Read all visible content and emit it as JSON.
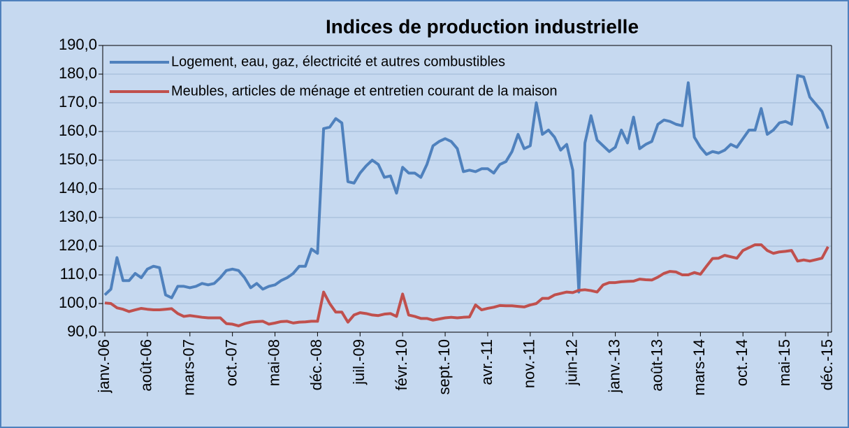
{
  "chart_data": {
    "type": "line",
    "title": "Indices de production industrielle",
    "categories": [
      "janv.-06",
      null,
      null,
      null,
      null,
      null,
      null,
      "août-06",
      null,
      null,
      null,
      null,
      null,
      null,
      "mars-07",
      null,
      null,
      null,
      null,
      null,
      null,
      "oct.-07",
      null,
      null,
      null,
      null,
      null,
      null,
      "mai-08",
      null,
      null,
      null,
      null,
      null,
      null,
      "déc.-08",
      null,
      null,
      null,
      null,
      null,
      null,
      "juil.-09",
      null,
      null,
      null,
      null,
      null,
      null,
      "févr.-10",
      null,
      null,
      null,
      null,
      null,
      null,
      "sept.-10",
      null,
      null,
      null,
      null,
      null,
      null,
      "avr.-11",
      null,
      null,
      null,
      null,
      null,
      null,
      "nov.-11",
      null,
      null,
      null,
      null,
      null,
      null,
      "juin-12",
      null,
      null,
      null,
      null,
      null,
      null,
      "janv.-13",
      null,
      null,
      null,
      null,
      null,
      null,
      "août-13",
      null,
      null,
      null,
      null,
      null,
      null,
      "mars-14",
      null,
      null,
      null,
      null,
      null,
      null,
      "oct.-14",
      null,
      null,
      null,
      null,
      null,
      null,
      "mai-15",
      null,
      null,
      null,
      null,
      null,
      null,
      "déc.-15"
    ],
    "series": [
      {
        "name": "Logement, eau, gaz, électricité et autres combustibles",
        "color": "#4f81bd",
        "values": [
          103,
          105,
          116,
          108,
          108,
          110.5,
          109,
          112,
          113,
          112.5,
          103,
          102,
          106,
          106,
          105.5,
          106,
          107,
          106.5,
          107,
          109,
          111.5,
          112,
          111.5,
          109,
          105.5,
          107,
          105,
          106,
          106.5,
          108,
          109,
          110.5,
          113,
          113,
          119,
          117.5,
          161,
          161.5,
          164.5,
          163,
          142.5,
          142,
          145.5,
          148,
          150,
          148.5,
          144,
          144.5,
          138.5,
          147.5,
          145.5,
          145.5,
          144,
          148.5,
          155,
          156.5,
          157.5,
          156.5,
          154,
          146,
          146.5,
          146,
          147,
          147,
          145.5,
          148.5,
          149.5,
          153,
          159,
          154,
          155,
          170,
          159,
          160.5,
          158,
          153.5,
          155.5,
          146.5,
          104,
          156,
          165.5,
          157,
          155,
          153,
          154.5,
          160.5,
          156,
          165,
          154,
          155.5,
          156.5,
          162.5,
          164,
          163.5,
          162.5,
          162,
          177,
          158,
          154.5,
          152,
          153,
          152.5,
          153.5,
          155.5,
          154.5,
          157.5,
          160.5,
          160.5,
          168,
          159,
          160.5,
          163,
          163.5,
          162.5,
          179.5,
          179,
          172,
          169.5,
          167,
          161
        ]
      },
      {
        "name": "Meubles, articles de ménage et entretien courant de la maison",
        "color": "#c0504d",
        "values": [
          100.2,
          100,
          98.5,
          98,
          97.2,
          97.8,
          98.3,
          98,
          97.8,
          97.8,
          98,
          98.2,
          96.5,
          95.5,
          95.8,
          95.5,
          95.2,
          95,
          95,
          95,
          93,
          92.8,
          92.2,
          93,
          93.5,
          93.7,
          93.8,
          92.8,
          93.2,
          93.7,
          93.8,
          93.2,
          93.5,
          93.6,
          93.8,
          93.8,
          104,
          100,
          97,
          97,
          93.5,
          96,
          96.8,
          96.5,
          96,
          95.8,
          96.3,
          96.5,
          95.5,
          103.3,
          96,
          95.5,
          94.8,
          94.8,
          94.2,
          94.6,
          95,
          95.2,
          95,
          95.2,
          95.3,
          99.5,
          97.8,
          98.3,
          98.7,
          99.3,
          99.2,
          99.2,
          99,
          98.8,
          99.5,
          100,
          101.8,
          101.8,
          103,
          103.5,
          104,
          103.8,
          104.6,
          104.8,
          104.5,
          104,
          106.5,
          107.3,
          107.3,
          107.6,
          107.7,
          107.8,
          108.5,
          108.3,
          108.2,
          109.2,
          110.5,
          111.2,
          111,
          110,
          110,
          110.8,
          110.2,
          113,
          115.7,
          115.8,
          116.8,
          116.3,
          115.8,
          118.5,
          119.5,
          120.5,
          120.5,
          118.5,
          117.5,
          118,
          118.2,
          118.5,
          114.8,
          115.2,
          114.8,
          115.3,
          115.8,
          119.8
        ]
      }
    ],
    "ylim": [
      90,
      190
    ],
    "yticks": [
      {
        "value": 90,
        "label": "90,0"
      },
      {
        "value": 100,
        "label": "100,0"
      },
      {
        "value": 110,
        "label": "110,0"
      },
      {
        "value": 120,
        "label": "120,0"
      },
      {
        "value": 130,
        "label": "130,0"
      },
      {
        "value": 140,
        "label": "140,0"
      },
      {
        "value": 150,
        "label": "150,0"
      },
      {
        "value": 160,
        "label": "160,0"
      },
      {
        "value": 170,
        "label": "170,0"
      },
      {
        "value": 180,
        "label": "180,0"
      },
      {
        "value": 190,
        "label": "190,0"
      }
    ],
    "grid": true,
    "legend": "upper left"
  }
}
